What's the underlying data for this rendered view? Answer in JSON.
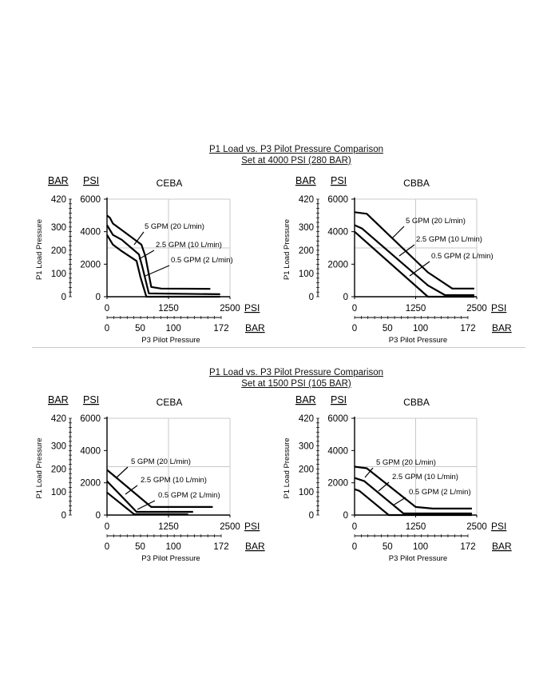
{
  "sections": [
    {
      "title": "P1 Load vs. P3 Pilot Pressure Comparison",
      "subtitle": "Set at 4000 PSI (280 BAR)"
    },
    {
      "title": "P1 Load vs. P3 Pilot Pressure Comparison",
      "subtitle": "Set at 1500 PSI (105 BAR)"
    }
  ],
  "chart_data": [
    {
      "type": "line",
      "title": "CEBA",
      "section": "Set at 4000 PSI (280 BAR)",
      "xlabel": "P3 Pilot Pressure",
      "ylabel": "P1 Load Pressure",
      "x_unit_primary": "PSI",
      "x_unit_secondary": "BAR",
      "y_unit_primary": "PSI",
      "y_unit_secondary": "BAR",
      "xlim": [
        0,
        2500
      ],
      "ylim": [
        0,
        6000
      ],
      "x_ticks": [
        "0",
        "1250",
        "2500"
      ],
      "x_ticks_bar": [
        "0",
        "50",
        "100",
        "172"
      ],
      "y_ticks": [
        "0",
        "2000",
        "4000",
        "6000"
      ],
      "y_ticks_bar": [
        "0",
        "100",
        "200",
        "300",
        "420"
      ],
      "grid": true,
      "series": [
        {
          "name": "5 GPM (20 L/min)",
          "label": "5 GPM (20 L/min)",
          "x": [
            0,
            60,
            120,
            300,
            700,
            780,
            900,
            1100,
            2100
          ],
          "y": [
            5000,
            4850,
            4500,
            4100,
            3200,
            2500,
            600,
            500,
            480
          ]
        },
        {
          "name": "2.5 GPM (10 L/min)",
          "label": "2.5 GPM (10 L/min)",
          "x": [
            0,
            60,
            120,
            300,
            650,
            720,
            850,
            2300
          ],
          "y": [
            4400,
            4100,
            3800,
            3500,
            2600,
            1800,
            200,
            150
          ]
        },
        {
          "name": "0.5 GPM (2 L/min)",
          "label": "0.5 GPM (2 L/min)",
          "x": [
            0,
            60,
            120,
            300,
            600,
            680,
            800,
            880,
            2300
          ],
          "y": [
            3800,
            3500,
            3200,
            2800,
            2200,
            1200,
            0,
            0,
            0
          ]
        }
      ]
    },
    {
      "type": "line",
      "title": "CBBA",
      "section": "Set at 4000 PSI (280 BAR)",
      "xlabel": "P3 Pilot Pressure",
      "ylabel": "P1 Load Pressure",
      "x_unit_primary": "PSI",
      "x_unit_secondary": "BAR",
      "y_unit_primary": "PSI",
      "y_unit_secondary": "BAR",
      "xlim": [
        0,
        2500
      ],
      "ylim": [
        0,
        6000
      ],
      "x_ticks": [
        "0",
        "1250",
        "2500"
      ],
      "x_ticks_bar": [
        "0",
        "50",
        "100",
        "172"
      ],
      "y_ticks": [
        "0",
        "2000",
        "4000",
        "6000"
      ],
      "y_ticks_bar": [
        "0",
        "100",
        "200",
        "300",
        "420"
      ],
      "grid": true,
      "series": [
        {
          "name": "5 GPM (20 L/min)",
          "label": "5 GPM (20 L/min)",
          "x": [
            0,
            250,
            1500,
            2000,
            2450
          ],
          "y": [
            5200,
            5100,
            1500,
            500,
            500
          ]
        },
        {
          "name": "2.5 GPM (10 L/min)",
          "label": "2.5 GPM (10 L/min)",
          "x": [
            0,
            150,
            1500,
            1850,
            2450
          ],
          "y": [
            4400,
            4200,
            700,
            100,
            100
          ]
        },
        {
          "name": "0.5 GPM (2 L/min)",
          "label": "0.5 GPM (2 L/min)",
          "x": [
            0,
            1500,
            2450
          ],
          "y": [
            4000,
            0,
            0
          ]
        }
      ]
    },
    {
      "type": "line",
      "title": "CEBA",
      "section": "Set at 1500 PSI (105 BAR)",
      "xlabel": "P3 Pilot Pressure",
      "ylabel": "P1 Load Pressure",
      "x_unit_primary": "PSI",
      "x_unit_secondary": "BAR",
      "y_unit_primary": "PSI",
      "y_unit_secondary": "BAR",
      "xlim": [
        0,
        2500
      ],
      "ylim": [
        0,
        6000
      ],
      "x_ticks": [
        "0",
        "1250",
        "2500"
      ],
      "x_ticks_bar": [
        "0",
        "50",
        "100",
        "172"
      ],
      "y_ticks": [
        "0",
        "2000",
        "4000",
        "6000"
      ],
      "y_ticks_bar": [
        "0",
        "100",
        "200",
        "300",
        "420"
      ],
      "grid": true,
      "series": [
        {
          "name": "5 GPM (20 L/min)",
          "label": "5 GPM (20 L/min)",
          "x": [
            0,
            900,
            2150
          ],
          "y": [
            2800,
            500,
            500
          ]
        },
        {
          "name": "2.5 GPM (10 L/min)",
          "label": "2.5 GPM (10 L/min)",
          "x": [
            0,
            600,
            1750
          ],
          "y": [
            2100,
            200,
            200
          ]
        },
        {
          "name": "0.5 GPM (2 L/min)",
          "label": "0.5 GPM (2 L/min)",
          "x": [
            0,
            550,
            1650
          ],
          "y": [
            1400,
            50,
            50
          ]
        }
      ]
    },
    {
      "type": "line",
      "title": "CBBA",
      "section": "Set at 1500 PSI (105 BAR)",
      "xlabel": "P3 Pilot Pressure",
      "ylabel": "P1 Load Pressure",
      "x_unit_primary": "PSI",
      "x_unit_secondary": "BAR",
      "y_unit_primary": "PSI",
      "y_unit_secondary": "BAR",
      "xlim": [
        0,
        2500
      ],
      "ylim": [
        0,
        6000
      ],
      "x_ticks": [
        "0",
        "1250",
        "2500"
      ],
      "x_ticks_bar": [
        "0",
        "50",
        "100",
        "172"
      ],
      "y_ticks": [
        "0",
        "2000",
        "4000",
        "6000"
      ],
      "y_ticks_bar": [
        "0",
        "100",
        "200",
        "300",
        "420"
      ],
      "grid": true,
      "series": [
        {
          "name": "5 GPM (20 L/min)",
          "label": "5 GPM (20 L/min)",
          "x": [
            0,
            250,
            1250,
            1600,
            2400
          ],
          "y": [
            3000,
            2900,
            500,
            400,
            400
          ]
        },
        {
          "name": "2.5 GPM (10 L/min)",
          "label": "2.5 GPM (10 L/min)",
          "x": [
            0,
            200,
            1000,
            2400
          ],
          "y": [
            2300,
            2100,
            100,
            100
          ]
        },
        {
          "name": "0.5 GPM (2 L/min)",
          "label": "0.5 GPM (2 L/min)",
          "x": [
            0,
            100,
            700,
            2400
          ],
          "y": [
            1600,
            1500,
            0,
            0
          ]
        }
      ]
    }
  ]
}
